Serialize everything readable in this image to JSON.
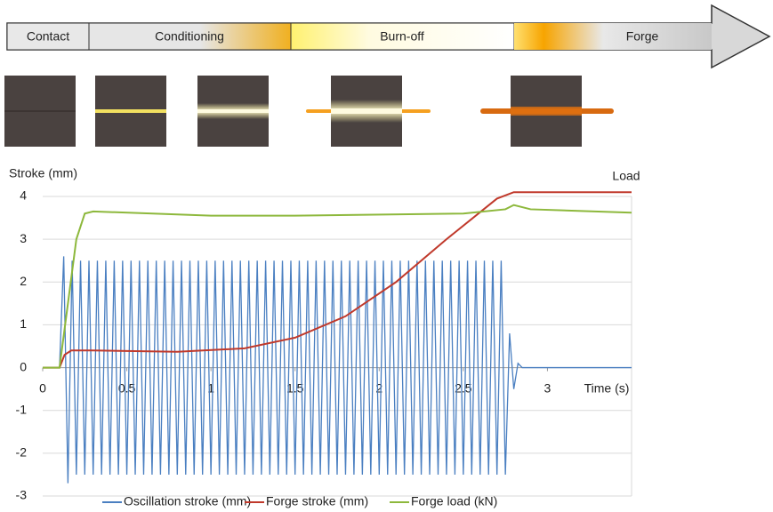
{
  "process": {
    "stages": [
      "Contact",
      "Conditioning",
      "Burn-off",
      "Forge"
    ]
  },
  "chart_data": {
    "type": "line",
    "ylabel": "Stroke (mm)",
    "xlabel": "Time (s)",
    "annotation": "Load",
    "xlim": [
      0,
      3.5
    ],
    "ylim": [
      -3,
      4
    ],
    "xticks": [
      0,
      0.5,
      1,
      1.5,
      2,
      2.5,
      3
    ],
    "yticks": [
      -3,
      -2,
      -1,
      0,
      1,
      2,
      3,
      4
    ],
    "grid": true,
    "legend": "bottom",
    "series": [
      {
        "name": "Oscillation stroke (mm)",
        "color": "#4a7fc1",
        "x": [
          0,
          0.1,
          0.125,
          0.15,
          0.175,
          0.2,
          0.225,
          0.25,
          0.275,
          0.3,
          0.325,
          0.35,
          0.375,
          0.4,
          0.425,
          0.45,
          0.475,
          0.5,
          0.525,
          0.55,
          0.575,
          0.6,
          0.625,
          0.65,
          0.675,
          0.7,
          0.725,
          0.75,
          0.775,
          0.8,
          0.825,
          0.85,
          0.875,
          0.9,
          0.925,
          0.95,
          0.975,
          1,
          1.025,
          1.05,
          1.075,
          1.1,
          1.125,
          1.15,
          1.175,
          1.2,
          1.225,
          1.25,
          1.275,
          1.3,
          1.325,
          1.35,
          1.375,
          1.4,
          1.425,
          1.45,
          1.475,
          1.5,
          1.525,
          1.55,
          1.575,
          1.6,
          1.625,
          1.65,
          1.675,
          1.7,
          1.725,
          1.75,
          1.775,
          1.8,
          1.825,
          1.85,
          1.875,
          1.9,
          1.925,
          1.95,
          1.975,
          2,
          2.025,
          2.05,
          2.075,
          2.1,
          2.125,
          2.15,
          2.175,
          2.2,
          2.225,
          2.25,
          2.275,
          2.3,
          2.325,
          2.35,
          2.375,
          2.4,
          2.425,
          2.45,
          2.475,
          2.5,
          2.525,
          2.55,
          2.575,
          2.6,
          2.625,
          2.65,
          2.675,
          2.7,
          2.725,
          2.75,
          2.775,
          2.8,
          2.825,
          2.85,
          3.5
        ],
        "values": [
          0,
          0,
          2.6,
          -2.7,
          2.5,
          -2.5,
          2.5,
          -2.5,
          2.5,
          -2.5,
          2.5,
          -2.5,
          2.5,
          -2.5,
          2.5,
          -2.5,
          2.5,
          -2.5,
          2.5,
          -2.5,
          2.5,
          -2.5,
          2.5,
          -2.5,
          2.5,
          -2.5,
          2.5,
          -2.5,
          2.5,
          -2.5,
          2.5,
          -2.5,
          2.5,
          -2.5,
          2.5,
          -2.5,
          2.5,
          -2.5,
          2.5,
          -2.5,
          2.5,
          -2.5,
          2.5,
          -2.5,
          2.5,
          -2.5,
          2.5,
          -2.5,
          2.5,
          -2.5,
          2.5,
          -2.5,
          2.5,
          -2.5,
          2.5,
          -2.5,
          2.5,
          -2.5,
          2.5,
          -2.5,
          2.5,
          -2.5,
          2.5,
          -2.5,
          2.5,
          -2.5,
          2.5,
          -2.5,
          2.5,
          -2.5,
          2.5,
          -2.5,
          2.5,
          -2.5,
          2.5,
          -2.5,
          2.5,
          -2.5,
          2.5,
          -2.5,
          2.5,
          -2.5,
          2.5,
          -2.5,
          2.5,
          -2.5,
          2.5,
          -2.5,
          2.5,
          -2.5,
          2.5,
          -2.5,
          2.5,
          -2.5,
          2.5,
          -2.5,
          2.5,
          -2.5,
          2.5,
          -2.5,
          2.5,
          -2.5,
          2.5,
          -2.5,
          2.5,
          -2.5,
          2.5,
          -2.5,
          0.8,
          -0.5,
          0.1,
          0,
          0
        ]
      },
      {
        "name": "Forge stroke (mm)",
        "color": "#c0392b",
        "x": [
          0,
          0.1,
          0.13,
          0.17,
          0.3,
          0.8,
          1.2,
          1.5,
          1.8,
          2.1,
          2.4,
          2.7,
          2.8,
          3.5
        ],
        "values": [
          0,
          0,
          0.3,
          0.4,
          0.4,
          0.37,
          0.45,
          0.7,
          1.2,
          2.0,
          3.0,
          3.95,
          4.1,
          4.1
        ]
      },
      {
        "name": "Forge load (kN)",
        "color": "#8db83c",
        "x": [
          0,
          0.1,
          0.15,
          0.2,
          0.25,
          0.3,
          1,
          1.5,
          2.5,
          2.75,
          2.8,
          2.9,
          3.5
        ],
        "values": [
          0,
          0,
          1.5,
          3.0,
          3.6,
          3.65,
          3.55,
          3.55,
          3.6,
          3.7,
          3.8,
          3.7,
          3.62
        ]
      }
    ]
  }
}
